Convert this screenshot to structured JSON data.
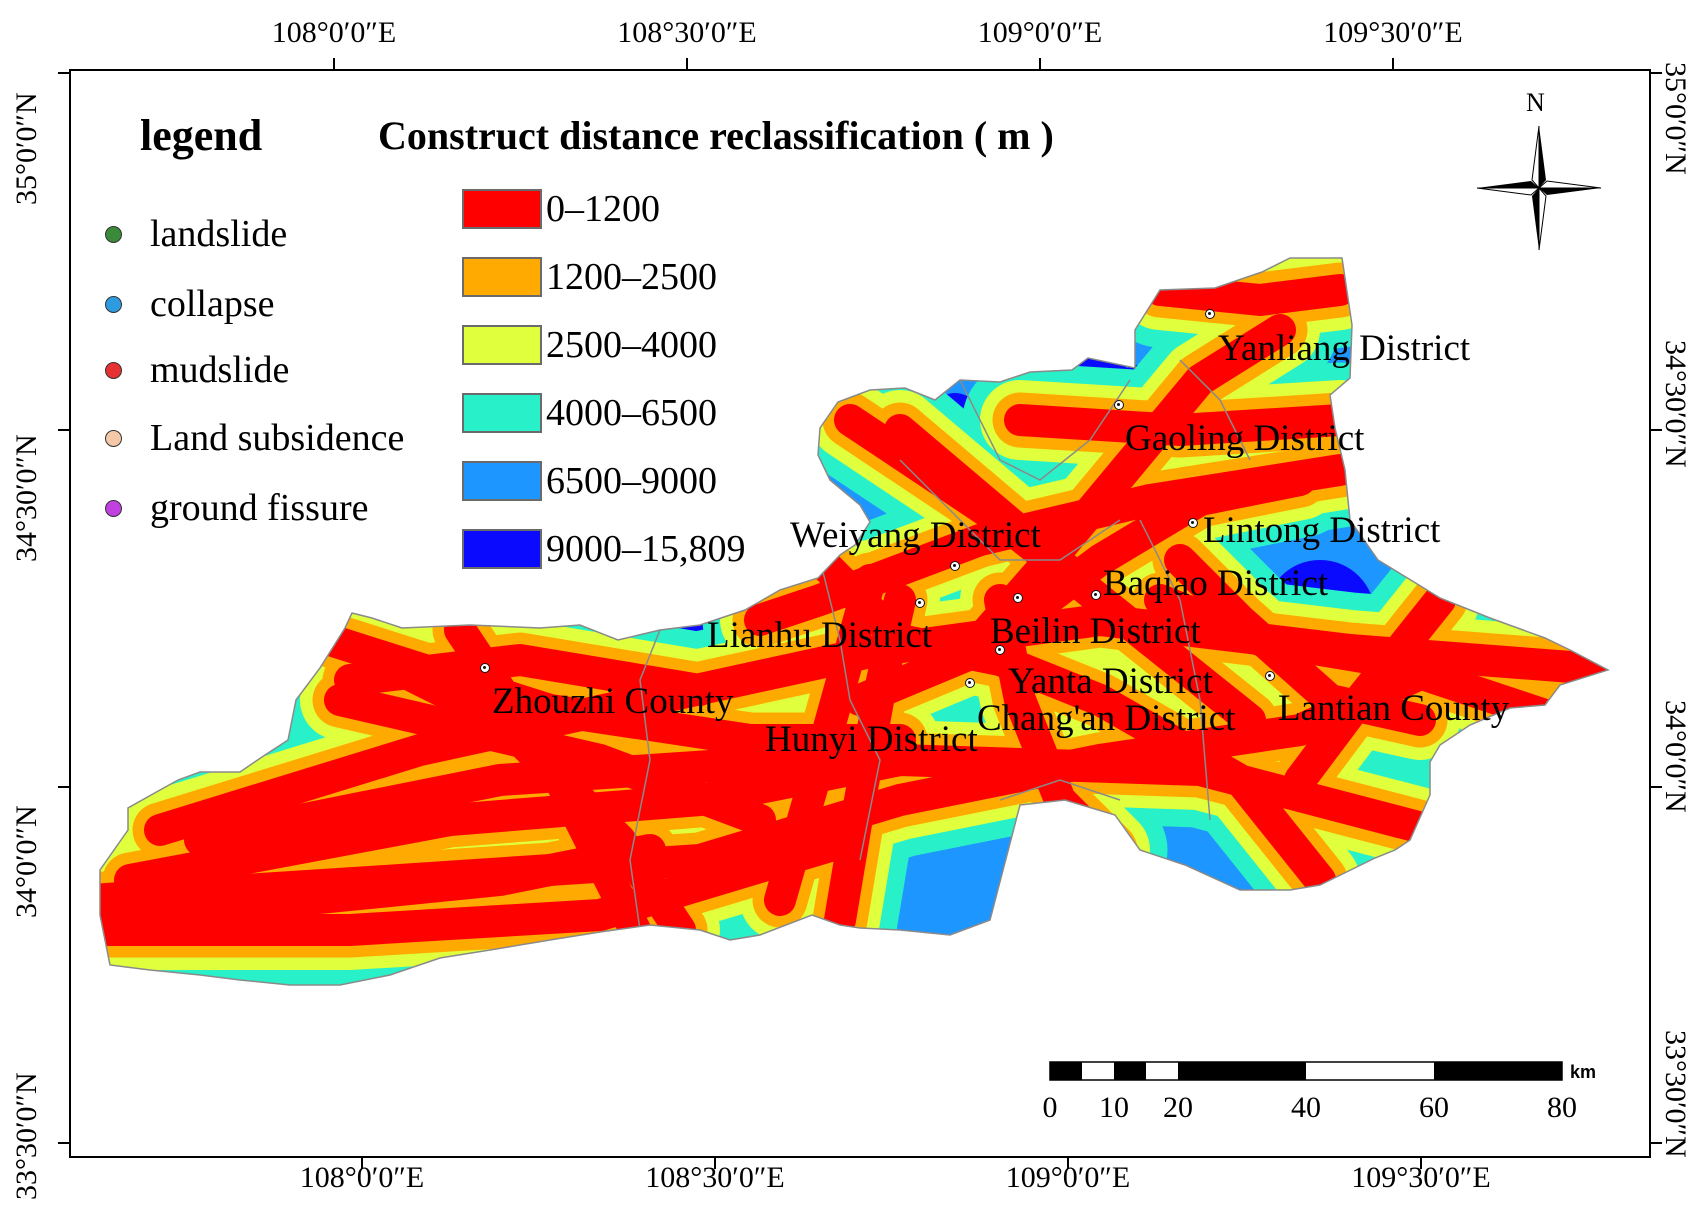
{
  "map": {
    "axis_labels": {
      "top": [
        "108°0′0″E",
        "108°30′0″E",
        "109°0′0″E",
        "109°30′0″E"
      ],
      "bottom": [
        "108°0′0″E",
        "108°30′0″E",
        "109°0′0″E",
        "109°30′0″E"
      ],
      "left": [
        "35°0′0″N",
        "34°30′0″N",
        "34°0′0″N",
        "33°30′0″N"
      ],
      "right": [
        "35°0′0″N",
        "34°30′0″N",
        "34°0′0″N",
        "33°30′0″N"
      ]
    },
    "legend": {
      "title": "legend",
      "items": [
        {
          "label": "landslide",
          "color": "#3a8a3a"
        },
        {
          "label": "collapse",
          "color": "#2e9be0"
        },
        {
          "label": "mudslide",
          "color": "#e63232"
        },
        {
          "label": "Land subsidence",
          "color": "#f5c9a8"
        },
        {
          "label": "ground fissure",
          "color": "#c040e0"
        }
      ]
    },
    "classification": {
      "title": "Construct distance reclassification ( m )",
      "classes": [
        {
          "label": "0–1200",
          "color": "#ff0000"
        },
        {
          "label": "1200–2500",
          "color": "#ffaa00"
        },
        {
          "label": "2500–4000",
          "color": "#e0ff3c"
        },
        {
          "label": "4000–6500",
          "color": "#28f0c8"
        },
        {
          "label": "6500–9000",
          "color": "#1e96ff"
        },
        {
          "label": "9000–15,809",
          "color": "#0a0aff"
        }
      ]
    },
    "districts": [
      "Yanliang District",
      "Gaoling District",
      "Lintong District",
      "Weiyang District",
      "Baqiao District",
      "Lianhu District",
      "Beilin District",
      "Zhouzhi County",
      "Yanta District",
      "Lantian County",
      "Chang'an District",
      "Hunyi District"
    ],
    "north_arrow": "N",
    "scale_bar": {
      "unit": "km",
      "ticks": [
        "0",
        "10",
        "20",
        "40",
        "60",
        "80"
      ]
    }
  }
}
